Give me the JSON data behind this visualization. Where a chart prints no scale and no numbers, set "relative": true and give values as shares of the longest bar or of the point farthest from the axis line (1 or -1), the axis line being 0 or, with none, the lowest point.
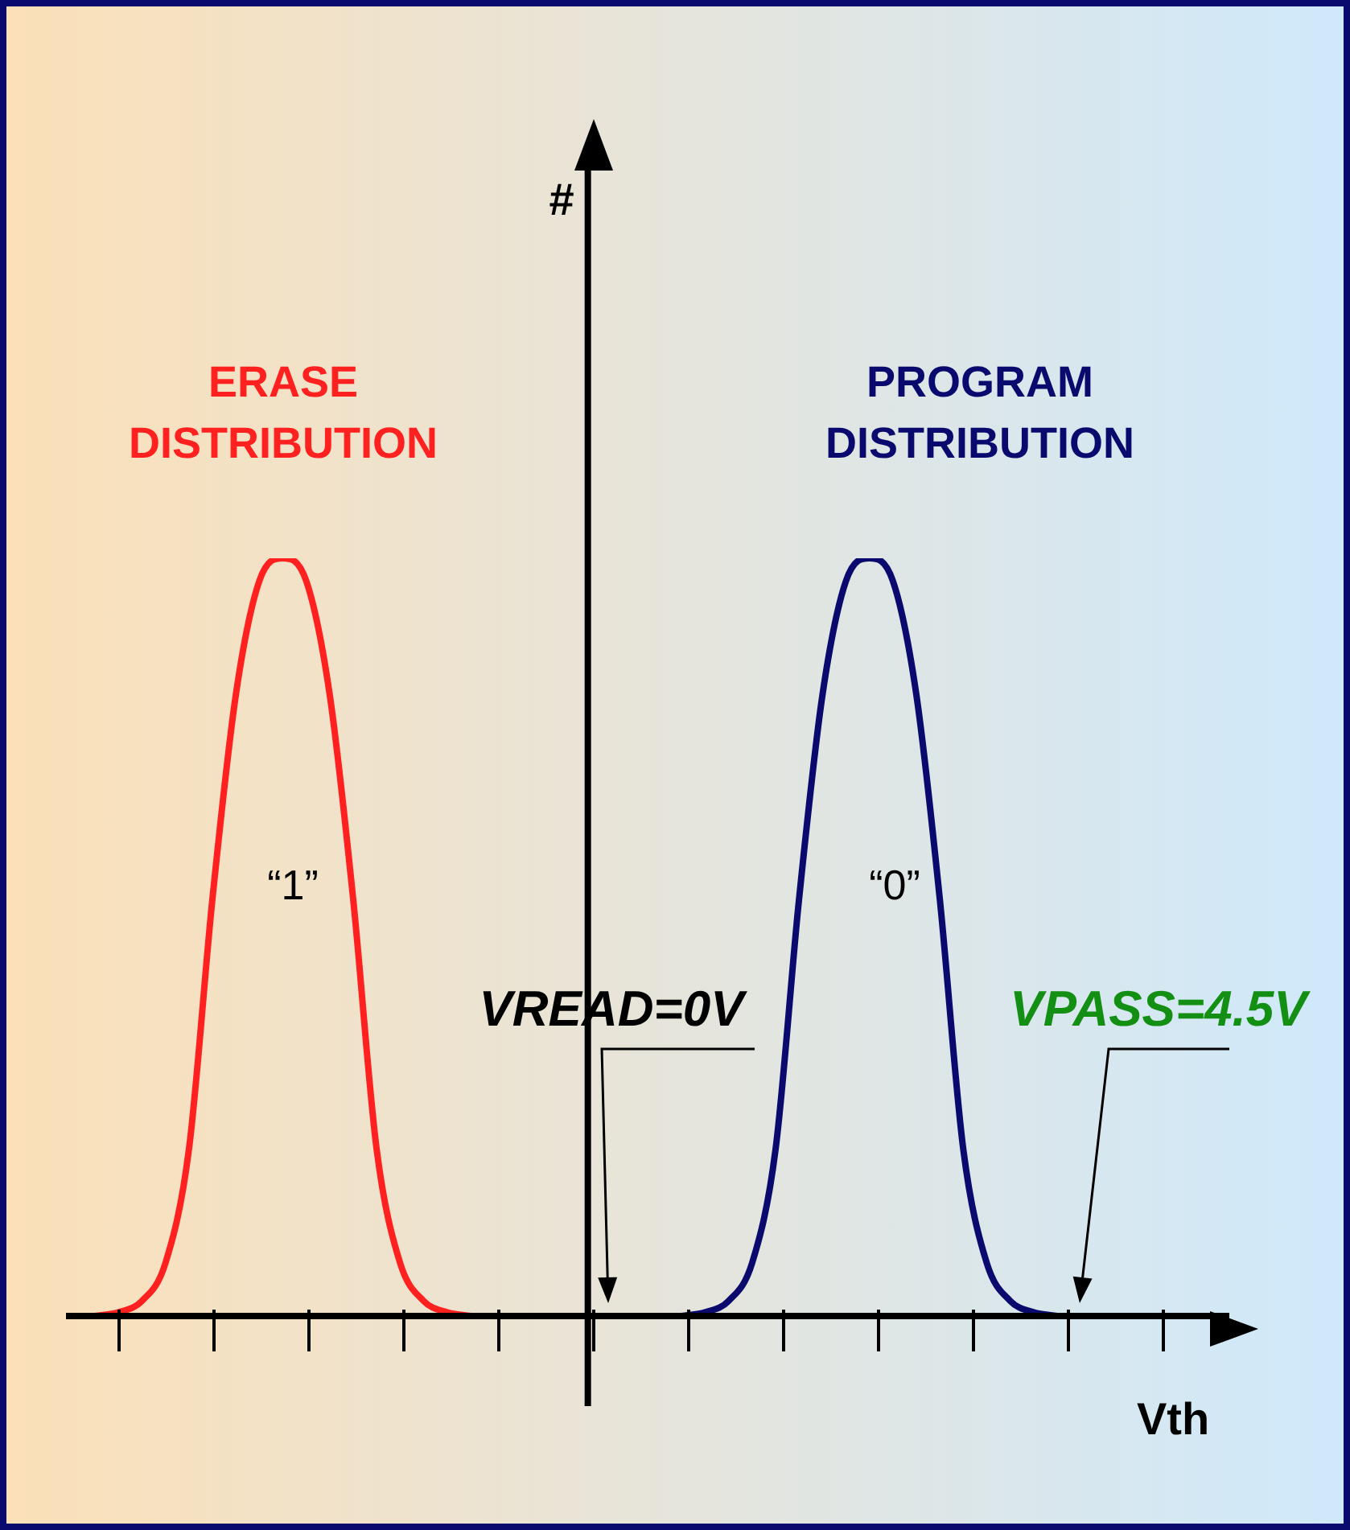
{
  "chart_data": {
    "type": "line",
    "relative": true,
    "xlabel": "Vth",
    "categories": [
      null,
      null,
      null,
      null,
      null,
      null,
      null,
      null,
      null,
      null,
      null,
      null,
      null,
      null,
      null,
      null,
      null,
      null,
      null,
      null,
      null,
      null,
      null,
      null,
      null,
      null,
      null,
      null,
      null,
      null,
      null,
      null,
      null,
      null,
      null,
      null,
      null,
      null,
      null,
      null,
      null,
      null,
      null,
      null,
      null,
      null,
      null,
      null,
      null
    ],
    "series": [
      {
        "name": "ERASE DISTRIBUTION",
        "color": "#ff2020",
        "values": [
          null,
          0,
          0.005,
          0.02,
          0.07,
          0.22,
          0.55,
          0.82,
          0.97,
          1,
          0.97,
          0.82,
          0.55,
          0.22,
          0.07,
          0.02,
          0.005,
          0,
          null,
          null,
          null,
          null,
          null,
          null,
          null,
          null,
          null,
          null,
          null,
          null,
          null,
          null,
          null,
          null,
          null,
          null,
          null,
          null,
          null,
          null,
          null,
          null,
          null,
          null,
          null,
          null,
          null,
          null,
          null
        ]
      },
      {
        "name": "PROGRAM DISTRIBUTION",
        "color": "#0a0a6e",
        "values": [
          null,
          null,
          null,
          null,
          null,
          null,
          null,
          null,
          null,
          null,
          null,
          null,
          null,
          null,
          null,
          null,
          null,
          null,
          null,
          null,
          null,
          null,
          null,
          null,
          null,
          null,
          0,
          0.005,
          0.02,
          0.07,
          0.22,
          0.55,
          0.82,
          0.97,
          1,
          0.97,
          0.82,
          0.55,
          0.22,
          0.07,
          0.02,
          0.005,
          0,
          null,
          null,
          null,
          null,
          null,
          null
        ]
      }
    ],
    "annotations": [
      "“1”",
      "“0”",
      "VREAD=0V",
      "VPASS=4.5V",
      "#"
    ],
    "legend": false,
    "marker": "none",
    "line_style": "solid"
  }
}
